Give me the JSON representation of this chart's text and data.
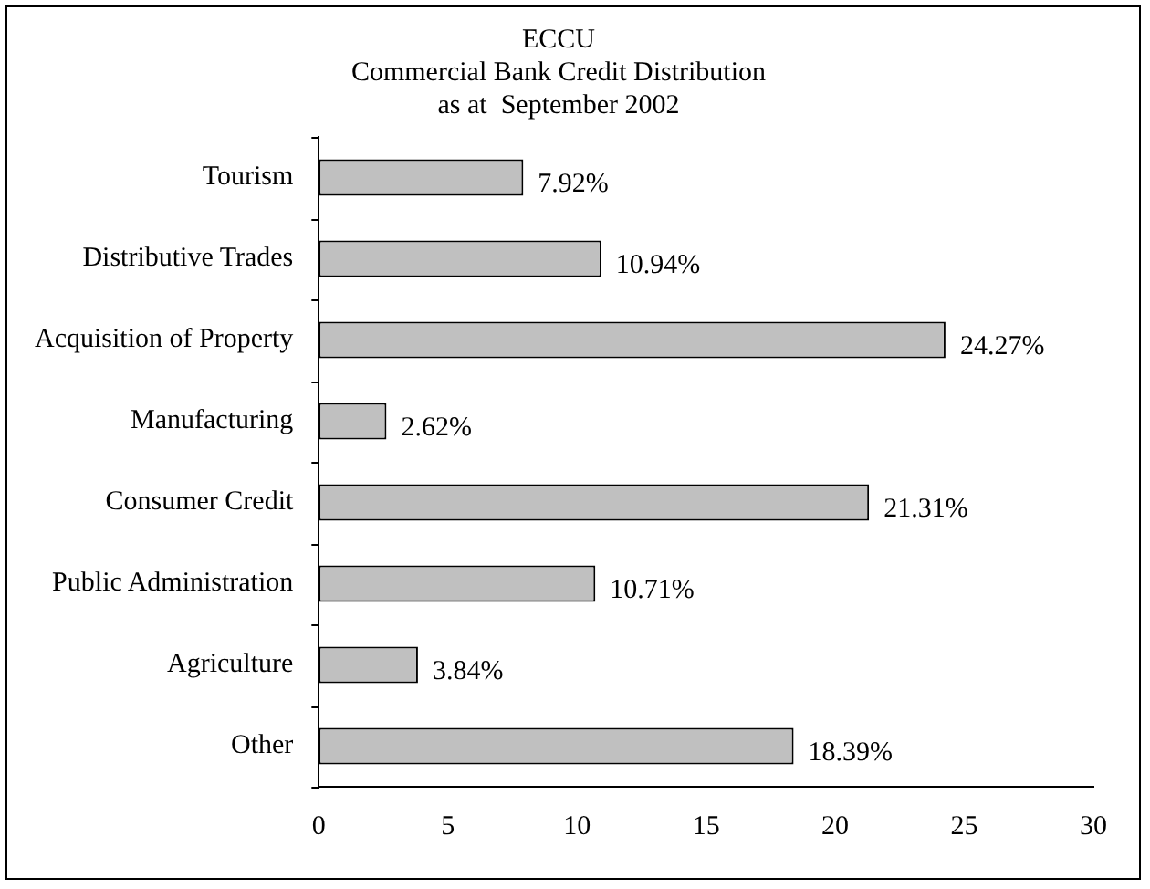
{
  "chart_data": {
    "type": "bar",
    "orientation": "horizontal",
    "title": "ECCU\nCommercial Bank Credit Distribution\nas at  September 2002",
    "categories": [
      "Tourism",
      "Distributive Trades",
      "Acquisition of Property",
      "Manufacturing",
      "Consumer Credit",
      "Public Administration",
      "Agriculture",
      "Other"
    ],
    "values": [
      7.92,
      10.94,
      24.27,
      2.62,
      21.31,
      10.71,
      3.84,
      18.39
    ],
    "value_labels": [
      "7.92%",
      "10.94%",
      "24.27%",
      "2.62%",
      "21.31%",
      "10.71%",
      "3.84%",
      "18.39%"
    ],
    "color": "#c0c0c0",
    "xlim": [
      0,
      30
    ],
    "xticks": [
      0,
      5,
      10,
      15,
      20,
      25,
      30
    ],
    "grid": false,
    "legend": false
  }
}
